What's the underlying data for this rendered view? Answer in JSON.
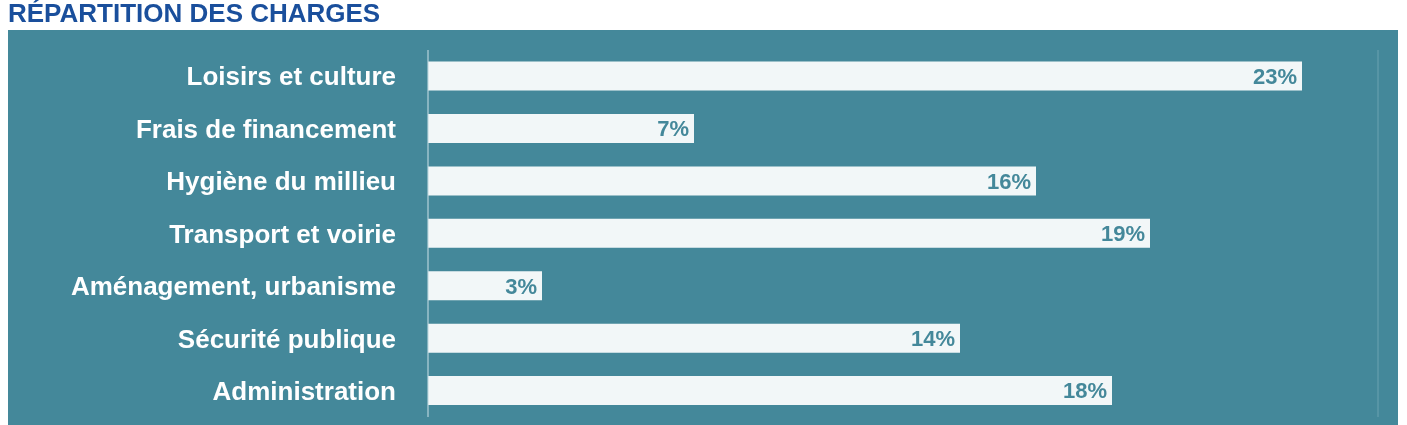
{
  "chart_data": {
    "type": "bar",
    "orientation": "horizontal",
    "title": "RÉPARTITION DES CHARGES",
    "categories": [
      "Loisirs et culture",
      "Frais de financement",
      "Hygiène du millieu",
      "Transport et voirie",
      "Aménagement, urbanisme",
      "Sécurité publique",
      "Administration"
    ],
    "values": [
      23,
      7,
      16,
      19,
      3,
      14,
      18
    ],
    "value_labels": [
      "23%",
      "7%",
      "16%",
      "19%",
      "3%",
      "14%",
      "18%"
    ],
    "color": "#f2f7f8",
    "xlim": [
      0,
      25
    ],
    "grid": "x",
    "tick_labels": "y"
  }
}
